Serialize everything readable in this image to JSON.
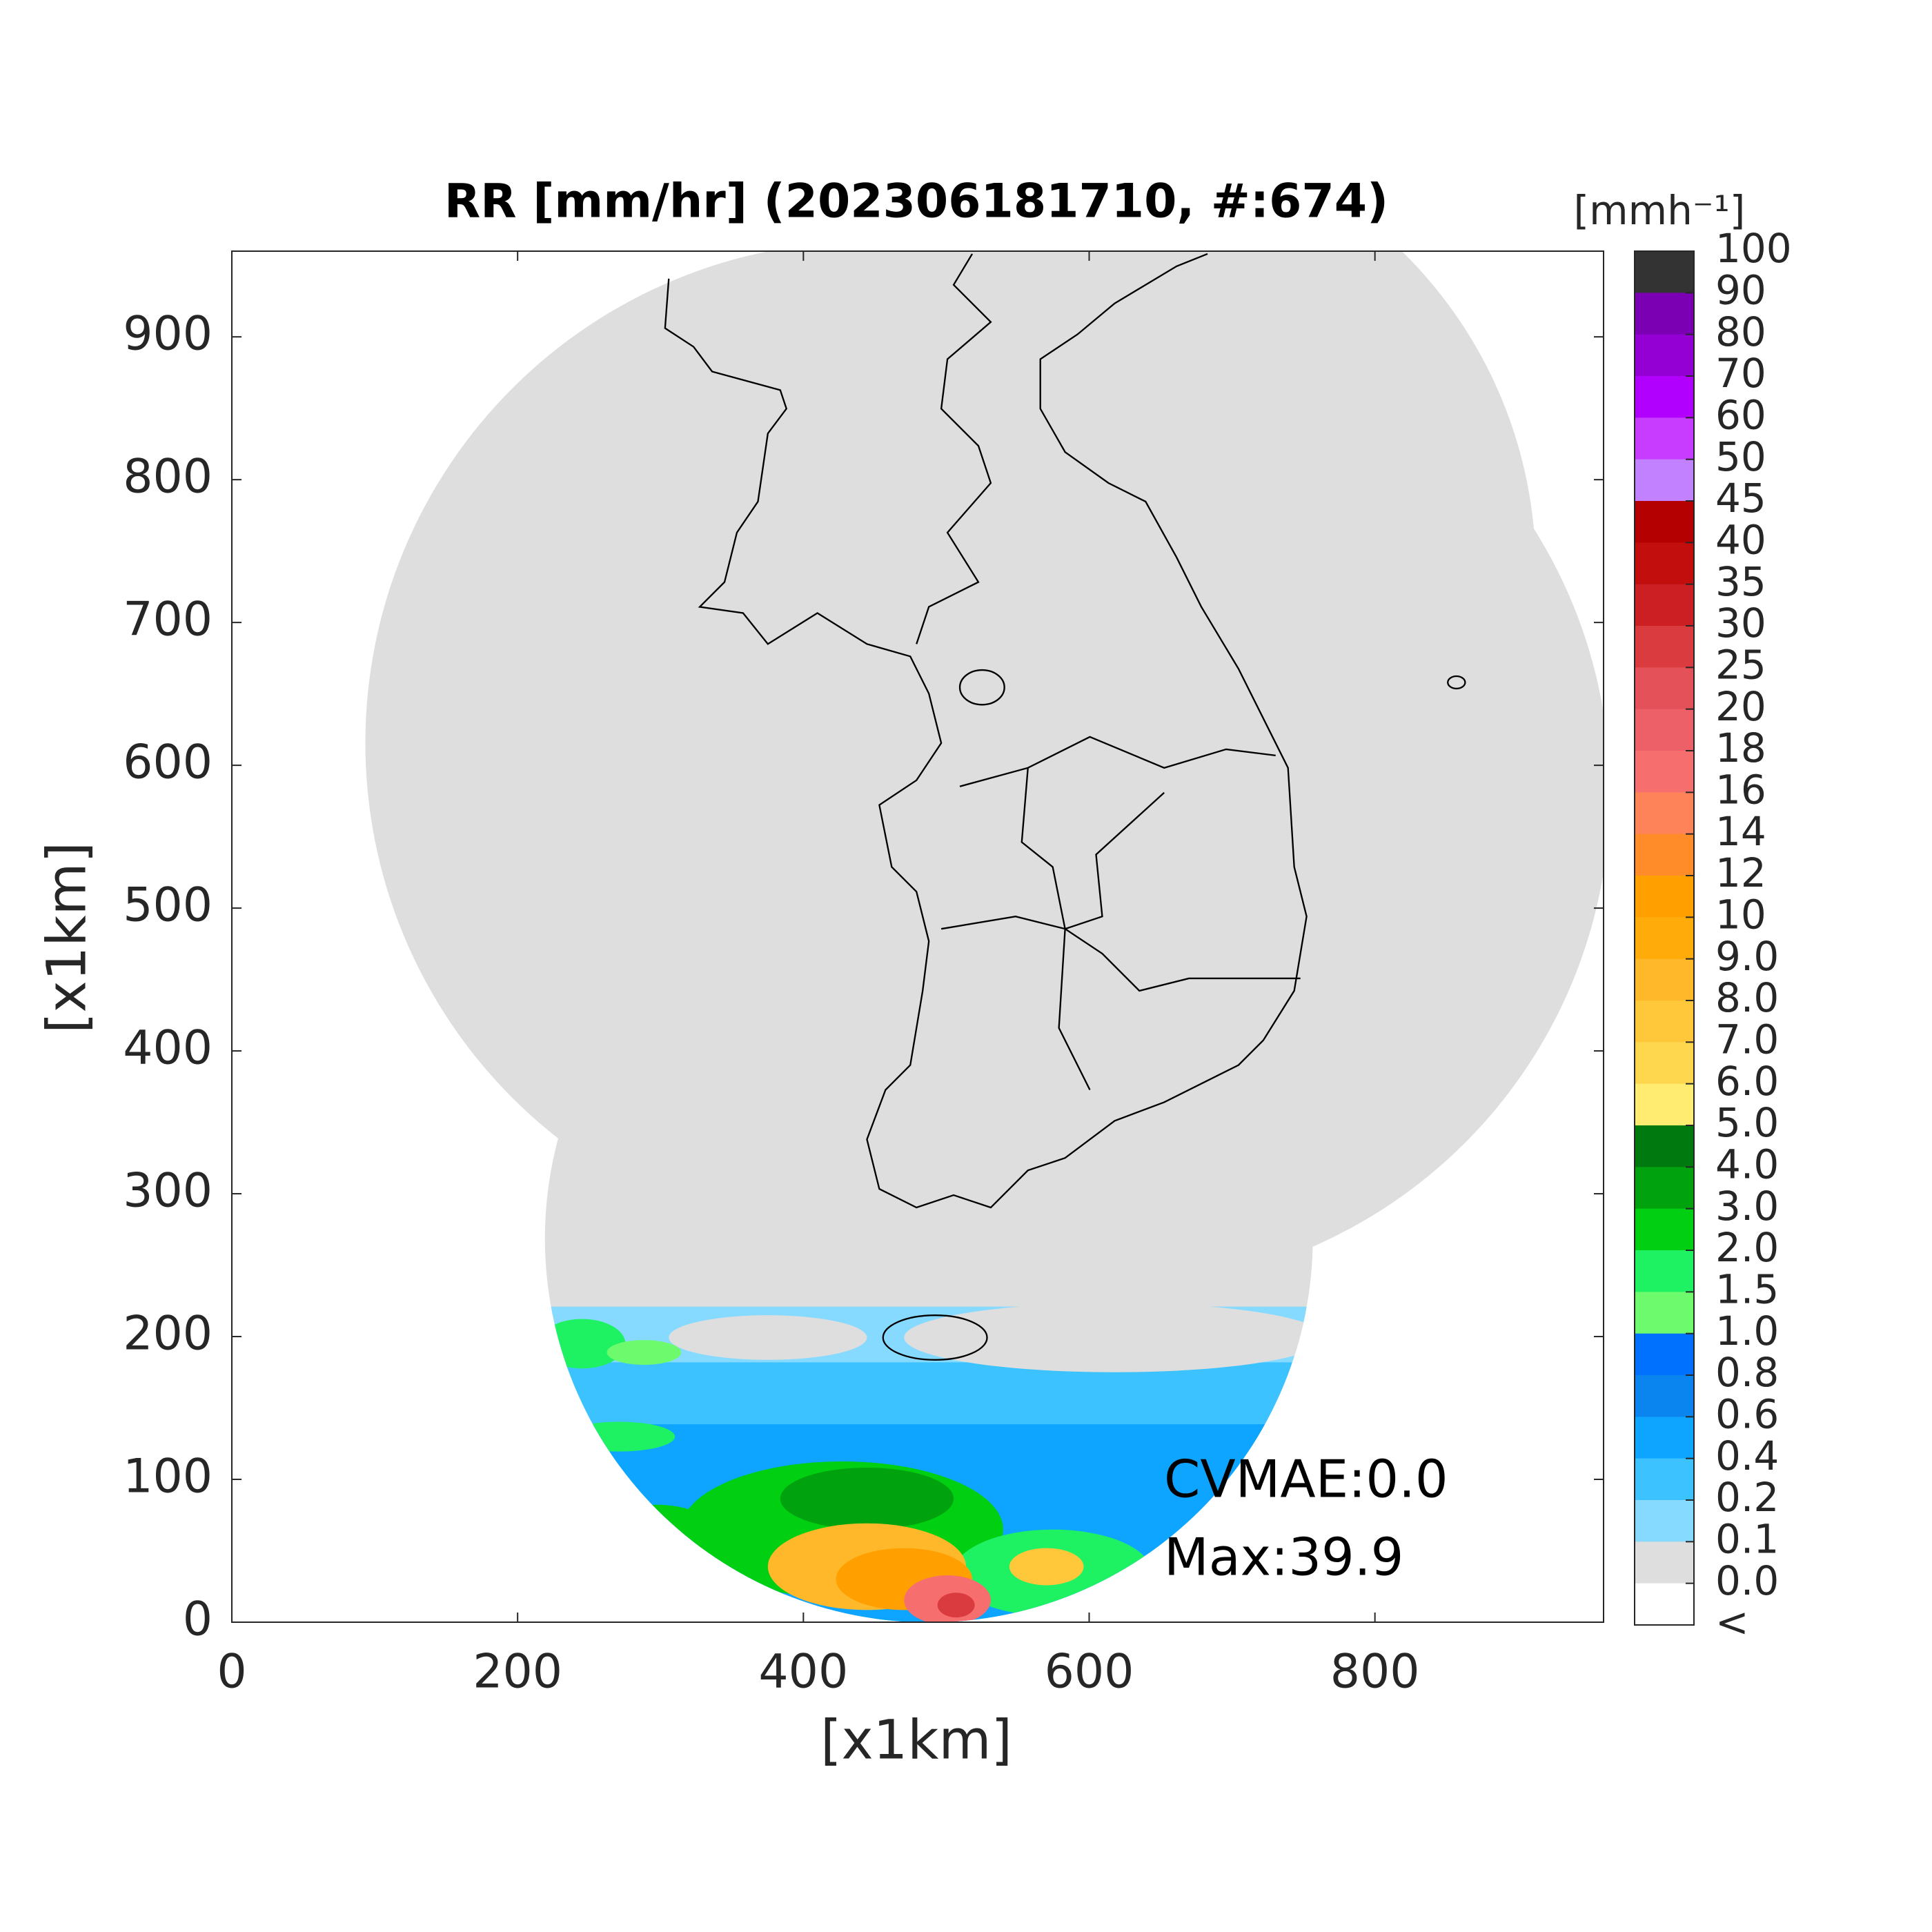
{
  "chart_data": {
    "type": "map",
    "title": "RR [mm/hr] (202306181710, #:674)",
    "xlabel": "[x1km]",
    "ylabel": "[x1km]",
    "xlim": [
      0,
      960
    ],
    "ylim": [
      0,
      960
    ],
    "xticks": [
      0,
      200,
      400,
      600,
      800
    ],
    "yticks": [
      0,
      100,
      200,
      300,
      400,
      500,
      600,
      700,
      800,
      900
    ],
    "annotations": [
      "CVMAE:0.0",
      "Max:39.9"
    ],
    "colorbar": {
      "label": "[mmh⁻¹]",
      "ticks": [
        100,
        90,
        80,
        70,
        60,
        50,
        45,
        40,
        35,
        30,
        25,
        20,
        18,
        16,
        14,
        12,
        10,
        {
          "value": 9,
          "label": "9.0"
        },
        {
          "value": 8,
          "label": "8.0"
        },
        {
          "value": 7,
          "label": "7.0"
        },
        {
          "value": 6,
          "label": "6.0"
        },
        {
          "value": 5,
          "label": "5.0"
        },
        {
          "value": 4,
          "label": "4.0"
        },
        {
          "value": 3,
          "label": "3.0"
        },
        {
          "value": 2,
          "label": "2.0"
        },
        1.5,
        {
          "value": 1,
          "label": "1.0"
        },
        0.8,
        0.6,
        0.4,
        0.2,
        0.1,
        {
          "value": 0,
          "label": "0.0"
        }
      ],
      "colors": [
        "#333333",
        "#7b00b4",
        "#9400d3",
        "#b200ff",
        "#c83cff",
        "#c282ff",
        "#b40000",
        "#c30e0e",
        "#cc1f24",
        "#d93b3f",
        "#e45159",
        "#ee6068",
        "#f76e6e",
        "#ff8358",
        "#ff8c28",
        "#ffa000",
        "#ffac0a",
        "#ffb82a",
        "#ffc83a",
        "#ffd74f",
        "#ffec70",
        "#007a0f",
        "#00a30e",
        "#00cf12",
        "#1ef262",
        "#6dfb6d",
        "#0070ff",
        "#0a85f0",
        "#0da5ff",
        "#3cc2ff",
        "#87daff",
        "#dedede"
      ],
      "under_color": "#ffffff",
      "under_label": "<"
    }
  }
}
